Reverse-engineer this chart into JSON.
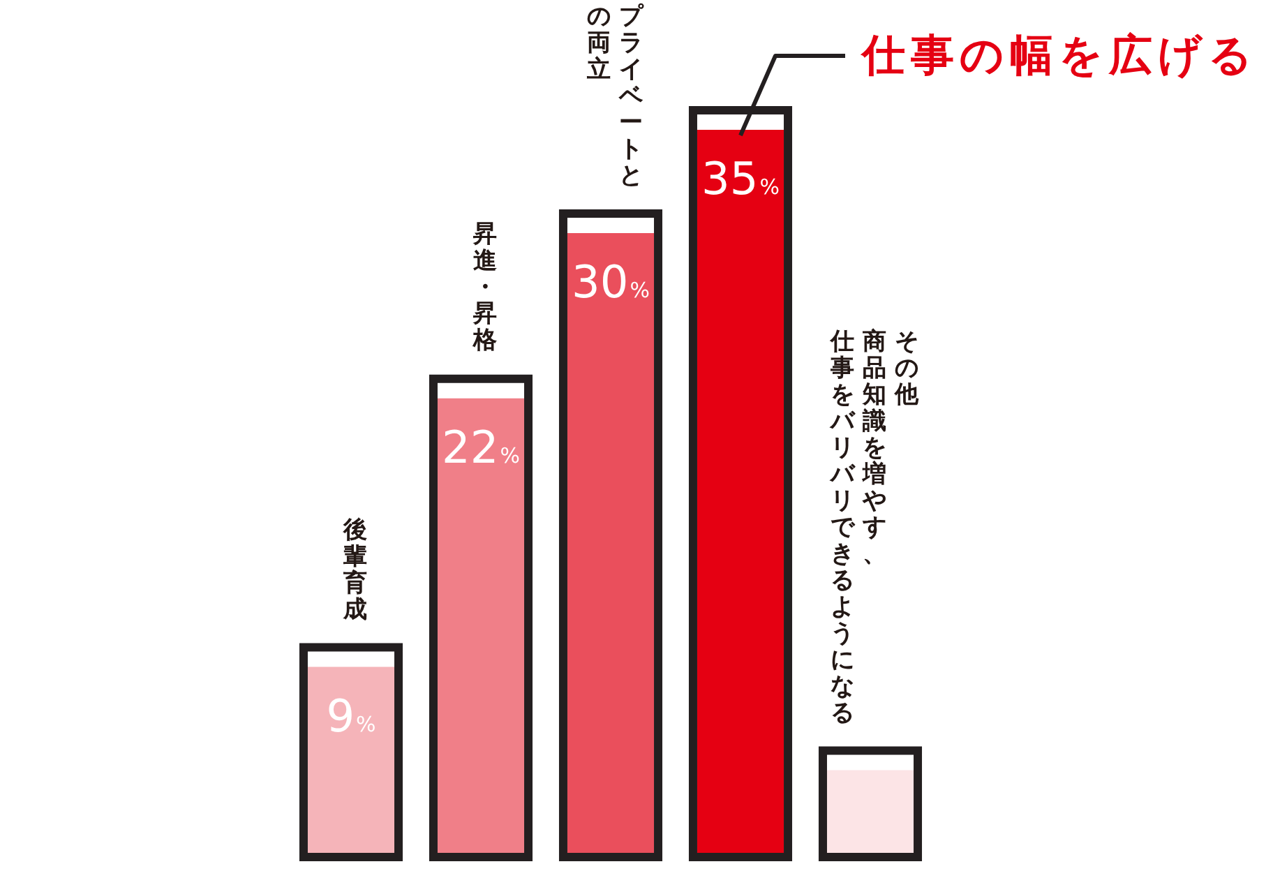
{
  "chart_data": {
    "type": "bar",
    "categories": [
      "後輩育成",
      "昇進・昇格",
      "プライベートとの両立",
      null,
      "その他"
    ],
    "values": [
      9,
      22,
      30,
      35,
      4
    ],
    "colors": [
      "#f5b4b9",
      "#f07f88",
      "#ea4f5c",
      "#e50012",
      "#fce4e6"
    ],
    "value_labels": [
      "9%",
      "22%",
      "30%",
      "35%",
      null
    ],
    "annotations": [
      "仕事の幅を広げる",
      "商品知識を増やす、仕事をバリバリできるようになる"
    ]
  }
}
